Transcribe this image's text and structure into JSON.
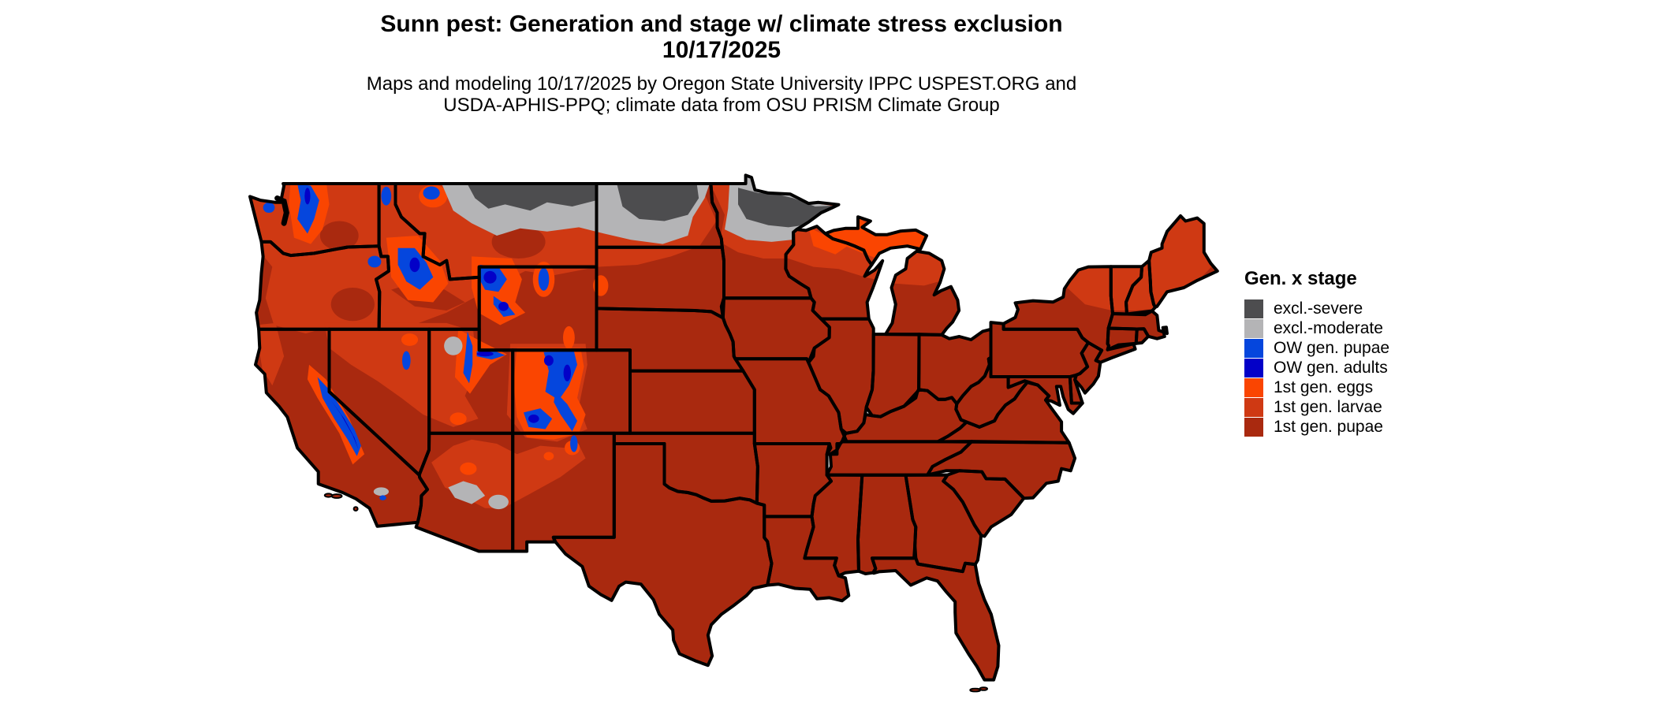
{
  "title": {
    "line1": "Sunn pest: Generation and stage w/ climate stress exclusion",
    "line2": "10/17/2025"
  },
  "subtitle": {
    "line1": "Maps and modeling 10/17/2025 by Oregon State University IPPC USPEST.ORG and",
    "line2": "USDA-APHIS-PPQ; climate data from OSU PRISM Climate Group"
  },
  "legend": {
    "title": "Gen. x stage",
    "items": [
      {
        "key": "severe",
        "label": "excl.-severe",
        "color": "#4D4D4F"
      },
      {
        "key": "moderate",
        "label": "excl.-moderate",
        "color": "#B4B4B6"
      },
      {
        "key": "ow_pupae",
        "label": "OW gen. pupae",
        "color": "#0546DD"
      },
      {
        "key": "ow_adults",
        "label": "OW gen. adults",
        "color": "#0300C8"
      },
      {
        "key": "eggs",
        "label": "1st gen. eggs",
        "color": "#FA4501"
      },
      {
        "key": "larvae",
        "label": "1st gen. larvae",
        "color": "#CF3913"
      },
      {
        "key": "pupae",
        "label": "1st gen. pupae",
        "color": "#A9290F"
      }
    ]
  },
  "map": {
    "name": "contiguous-united-states-raster-map",
    "border_color": "#000000",
    "background_color": "#FFFFFF"
  }
}
